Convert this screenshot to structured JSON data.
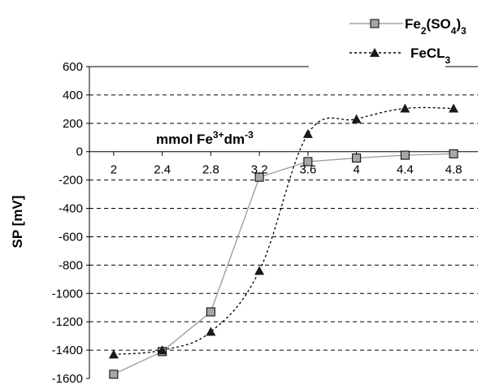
{
  "chart_data": {
    "type": "line",
    "x": [
      2,
      2.4,
      2.8,
      3.2,
      3.6,
      4,
      4.4,
      4.8
    ],
    "x_tick_labels": [
      "2",
      "2.4",
      "2.8",
      "3.2",
      "3.6",
      "4",
      "4.4",
      "4.8"
    ],
    "xlabel": {
      "base": "mmol Fe",
      "sup1": "3+",
      "mid": "dm",
      "sup2": "-3"
    },
    "ylabel": "SP [mV]",
    "ylim": [
      -1600,
      600
    ],
    "y_ticks": [
      600,
      400,
      200,
      0,
      -200,
      -400,
      -600,
      -800,
      -1000,
      -1200,
      -1400,
      -1600
    ],
    "grid": "horizontal-dashed",
    "legend_position": "top-right",
    "series": [
      {
        "name": {
          "base": "Fe",
          "sub1": "2",
          "mid": "(SO",
          "sub2": "4",
          "end": ")",
          "sub3": "3"
        },
        "marker": "square",
        "line": "solid",
        "color": "#a0a0a0",
        "marker_color": "#a6a6a6",
        "values": [
          -1570,
          -1410,
          -1130,
          -180,
          -70,
          -45,
          -25,
          -15
        ]
      },
      {
        "name": {
          "base": "FeCL",
          "sub1": "3"
        },
        "marker": "triangle",
        "line": "dotted",
        "color": "#000000",
        "marker_color": "#1a1a1a",
        "values": [
          -1430,
          -1400,
          -1270,
          -840,
          125,
          230,
          305,
          305
        ]
      }
    ]
  }
}
